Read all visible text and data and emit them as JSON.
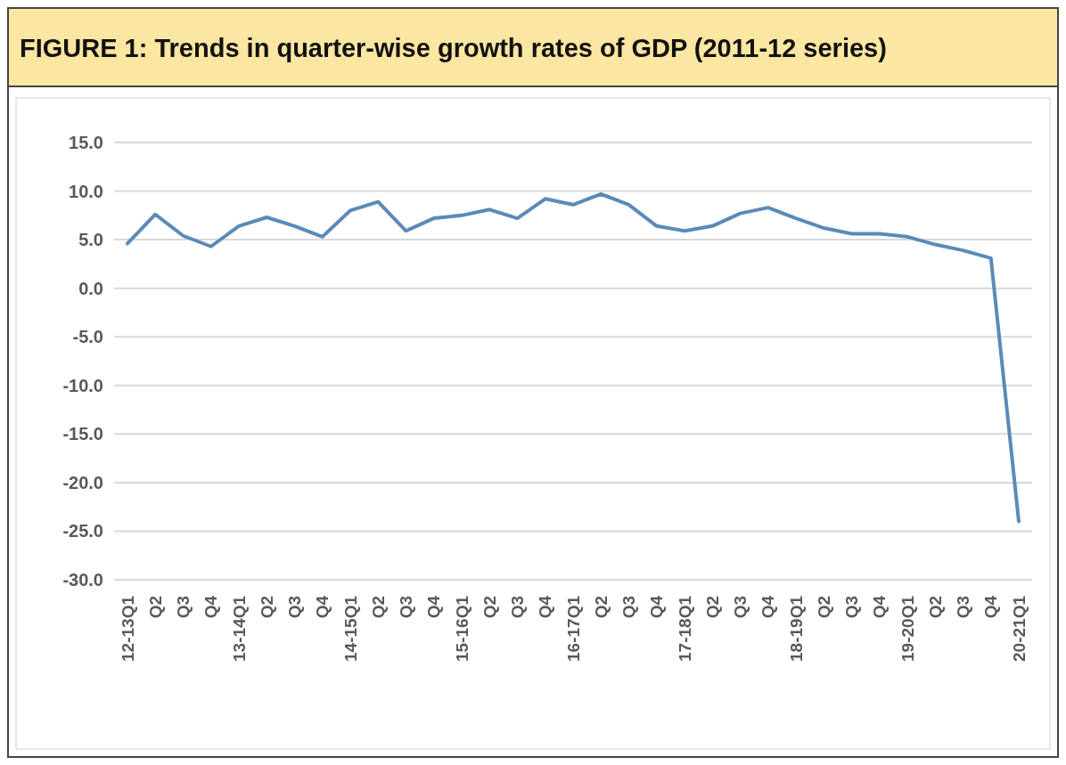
{
  "chart_data": {
    "type": "line",
    "title": "FIGURE 1: Trends in quarter-wise growth rates of GDP (2011-12 series)",
    "categories": [
      "12-13Q1",
      "Q2",
      "Q3",
      "Q4",
      "13-14Q1",
      "Q2",
      "Q3",
      "Q4",
      "14-15Q1",
      "Q2",
      "Q3",
      "Q4",
      "15-16Q1",
      "Q2",
      "Q3",
      "Q4",
      "16-17Q1",
      "Q2",
      "Q3",
      "Q4",
      "17-18Q1",
      "Q2",
      "Q3",
      "Q4",
      "18-19Q1",
      "Q2",
      "Q3",
      "Q4",
      "19-20Q1",
      "Q2",
      "Q3",
      "Q4",
      "20-21Q1"
    ],
    "series": [
      {
        "color": "#5b8ab8",
        "values": [
          4.6,
          7.6,
          5.4,
          4.3,
          6.4,
          7.3,
          6.4,
          5.3,
          8.0,
          8.9,
          5.9,
          7.2,
          7.5,
          8.1,
          7.2,
          9.2,
          8.6,
          9.7,
          8.6,
          6.4,
          5.9,
          6.4,
          7.7,
          8.3,
          7.2,
          6.2,
          5.6,
          5.6,
          5.3,
          4.5,
          3.9,
          3.1,
          -24.0
        ]
      }
    ],
    "ylim": [
      -30,
      15
    ],
    "yticks": [
      {
        "value": 15,
        "label": "15.0"
      },
      {
        "value": 10,
        "label": "10.0"
      },
      {
        "value": 5,
        "label": "5.0"
      },
      {
        "value": 0,
        "label": "0.0"
      },
      {
        "value": -5,
        "label": "-5.0"
      },
      {
        "value": -10,
        "label": "-10.0"
      },
      {
        "value": -15,
        "label": "-15.0"
      },
      {
        "value": -20,
        "label": "-20.0"
      },
      {
        "value": -25,
        "label": "-25.0"
      },
      {
        "value": -30,
        "label": "-30.0"
      }
    ],
    "grid": "y",
    "marker": "none",
    "line_style": "solid"
  }
}
